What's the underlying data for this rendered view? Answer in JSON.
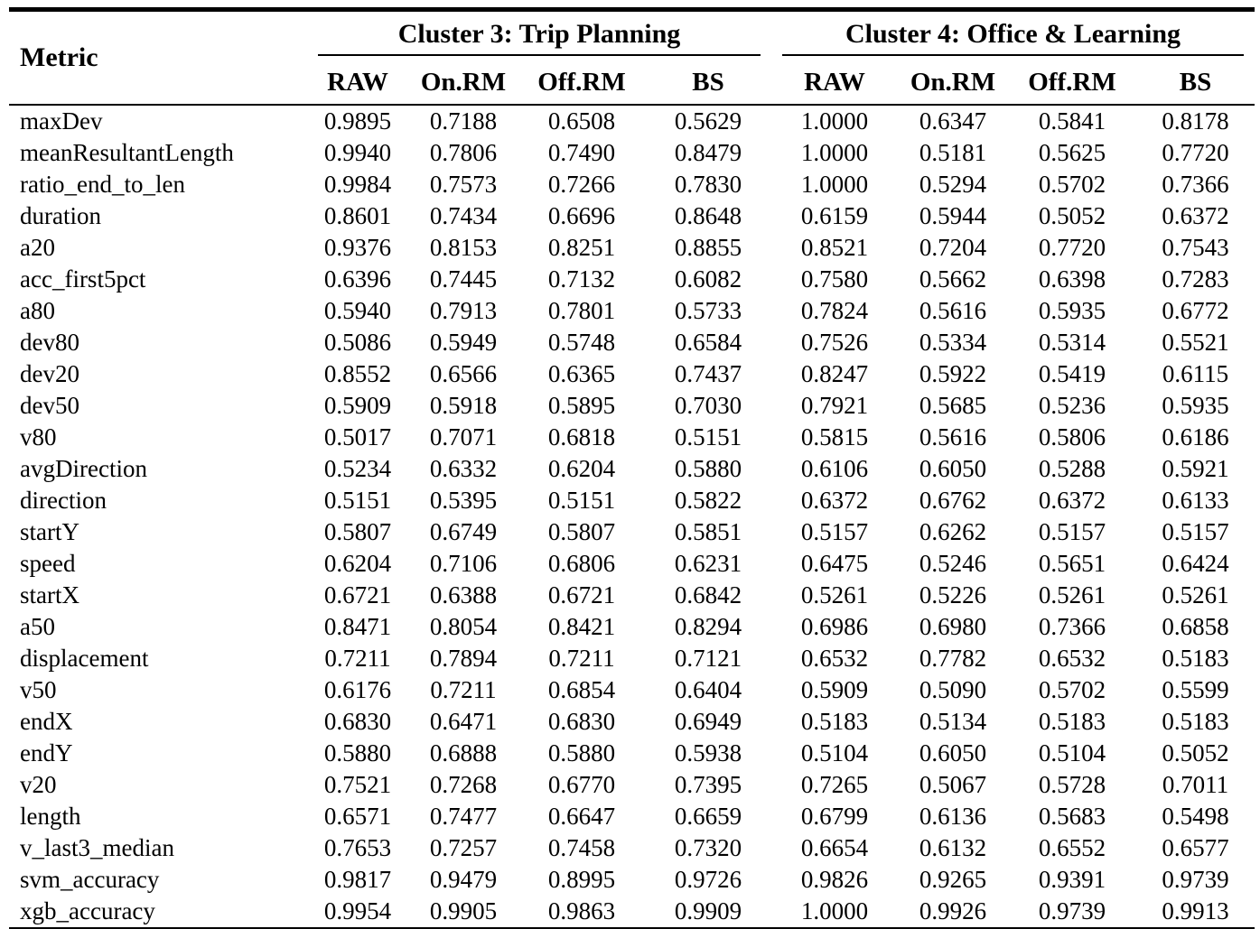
{
  "table": {
    "metric_header": "Metric",
    "groups": [
      {
        "label": "Cluster 3: Trip Planning",
        "columns": [
          "RAW",
          "On.RM",
          "Off.RM",
          "BS"
        ]
      },
      {
        "label": "Cluster 4: Office & Learning",
        "columns": [
          "RAW",
          "On.RM",
          "Off.RM",
          "BS"
        ]
      }
    ],
    "rows": [
      {
        "metric": "maxDev",
        "values": [
          "0.9895",
          "0.7188",
          "0.6508",
          "0.5629",
          "1.0000",
          "0.6347",
          "0.5841",
          "0.8178"
        ]
      },
      {
        "metric": "meanResultantLength",
        "values": [
          "0.9940",
          "0.7806",
          "0.7490",
          "0.8479",
          "1.0000",
          "0.5181",
          "0.5625",
          "0.7720"
        ]
      },
      {
        "metric": "ratio_end_to_len",
        "values": [
          "0.9984",
          "0.7573",
          "0.7266",
          "0.7830",
          "1.0000",
          "0.5294",
          "0.5702",
          "0.7366"
        ]
      },
      {
        "metric": "duration",
        "values": [
          "0.8601",
          "0.7434",
          "0.6696",
          "0.8648",
          "0.6159",
          "0.5944",
          "0.5052",
          "0.6372"
        ]
      },
      {
        "metric": "a20",
        "values": [
          "0.9376",
          "0.8153",
          "0.8251",
          "0.8855",
          "0.8521",
          "0.7204",
          "0.7720",
          "0.7543"
        ]
      },
      {
        "metric": "acc_first5pct",
        "values": [
          "0.6396",
          "0.7445",
          "0.7132",
          "0.6082",
          "0.7580",
          "0.5662",
          "0.6398",
          "0.7283"
        ]
      },
      {
        "metric": "a80",
        "values": [
          "0.5940",
          "0.7913",
          "0.7801",
          "0.5733",
          "0.7824",
          "0.5616",
          "0.5935",
          "0.6772"
        ]
      },
      {
        "metric": "dev80",
        "values": [
          "0.5086",
          "0.5949",
          "0.5748",
          "0.6584",
          "0.7526",
          "0.5334",
          "0.5314",
          "0.5521"
        ]
      },
      {
        "metric": "dev20",
        "values": [
          "0.8552",
          "0.6566",
          "0.6365",
          "0.7437",
          "0.8247",
          "0.5922",
          "0.5419",
          "0.6115"
        ]
      },
      {
        "metric": "dev50",
        "values": [
          "0.5909",
          "0.5918",
          "0.5895",
          "0.7030",
          "0.7921",
          "0.5685",
          "0.5236",
          "0.5935"
        ]
      },
      {
        "metric": "v80",
        "values": [
          "0.5017",
          "0.7071",
          "0.6818",
          "0.5151",
          "0.5815",
          "0.5616",
          "0.5806",
          "0.6186"
        ]
      },
      {
        "metric": "avgDirection",
        "values": [
          "0.5234",
          "0.6332",
          "0.6204",
          "0.5880",
          "0.6106",
          "0.6050",
          "0.5288",
          "0.5921"
        ]
      },
      {
        "metric": "direction",
        "values": [
          "0.5151",
          "0.5395",
          "0.5151",
          "0.5822",
          "0.6372",
          "0.6762",
          "0.6372",
          "0.6133"
        ]
      },
      {
        "metric": "startY",
        "values": [
          "0.5807",
          "0.6749",
          "0.5807",
          "0.5851",
          "0.5157",
          "0.6262",
          "0.5157",
          "0.5157"
        ]
      },
      {
        "metric": "speed",
        "values": [
          "0.6204",
          "0.7106",
          "0.6806",
          "0.6231",
          "0.6475",
          "0.5246",
          "0.5651",
          "0.6424"
        ]
      },
      {
        "metric": "startX",
        "values": [
          "0.6721",
          "0.6388",
          "0.6721",
          "0.6842",
          "0.5261",
          "0.5226",
          "0.5261",
          "0.5261"
        ]
      },
      {
        "metric": "a50",
        "values": [
          "0.8471",
          "0.8054",
          "0.8421",
          "0.8294",
          "0.6986",
          "0.6980",
          "0.7366",
          "0.6858"
        ]
      },
      {
        "metric": "displacement",
        "values": [
          "0.7211",
          "0.7894",
          "0.7211",
          "0.7121",
          "0.6532",
          "0.7782",
          "0.6532",
          "0.5183"
        ]
      },
      {
        "metric": "v50",
        "values": [
          "0.6176",
          "0.7211",
          "0.6854",
          "0.6404",
          "0.5909",
          "0.5090",
          "0.5702",
          "0.5599"
        ]
      },
      {
        "metric": "endX",
        "values": [
          "0.6830",
          "0.6471",
          "0.6830",
          "0.6949",
          "0.5183",
          "0.5134",
          "0.5183",
          "0.5183"
        ]
      },
      {
        "metric": "endY",
        "values": [
          "0.5880",
          "0.6888",
          "0.5880",
          "0.5938",
          "0.5104",
          "0.6050",
          "0.5104",
          "0.5052"
        ]
      },
      {
        "metric": "v20",
        "values": [
          "0.7521",
          "0.7268",
          "0.6770",
          "0.7395",
          "0.7265",
          "0.5067",
          "0.5728",
          "0.7011"
        ]
      },
      {
        "metric": "length",
        "values": [
          "0.6571",
          "0.7477",
          "0.6647",
          "0.6659",
          "0.6799",
          "0.6136",
          "0.5683",
          "0.5498"
        ]
      },
      {
        "metric": "v_last3_median",
        "values": [
          "0.7653",
          "0.7257",
          "0.7458",
          "0.7320",
          "0.6654",
          "0.6132",
          "0.6552",
          "0.6577"
        ]
      },
      {
        "metric": "svm_accuracy",
        "values": [
          "0.9817",
          "0.9479",
          "0.8995",
          "0.9726",
          "0.9826",
          "0.9265",
          "0.9391",
          "0.9739"
        ]
      },
      {
        "metric": "xgb_accuracy",
        "values": [
          "0.9954",
          "0.9905",
          "0.9863",
          "0.9909",
          "1.0000",
          "0.9926",
          "0.9739",
          "0.9913"
        ]
      }
    ]
  },
  "colors": {
    "text": "#000000",
    "rule": "#000000",
    "background": "#ffffff"
  }
}
